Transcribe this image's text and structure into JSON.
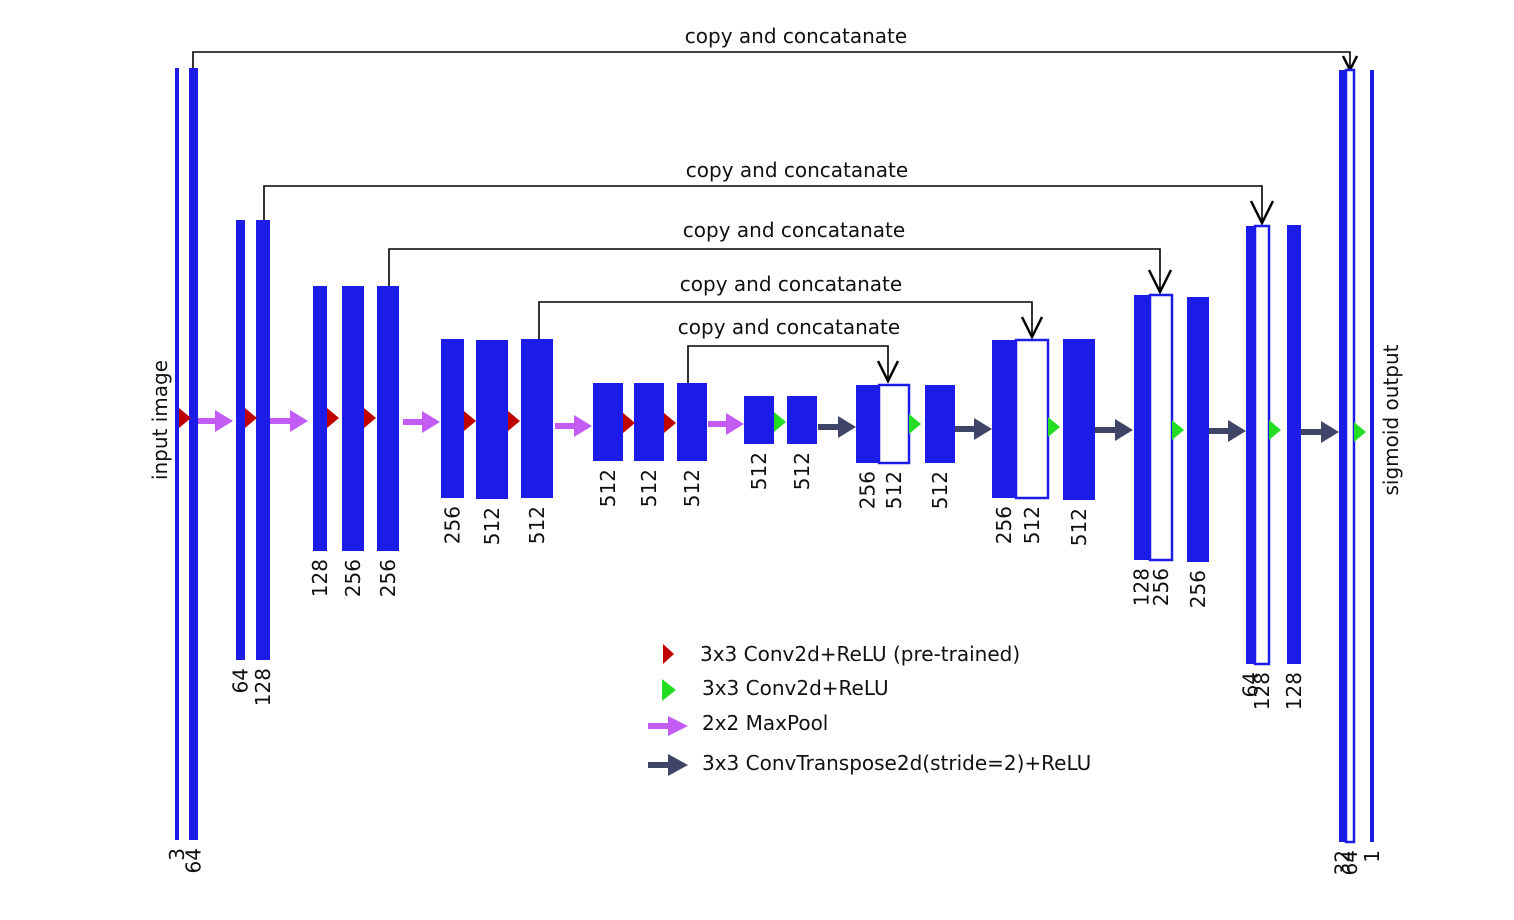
{
  "diagram": {
    "colors": {
      "block": "#1c1ce8",
      "block_outline": "#1c1ce8",
      "conv_pretrained": "#c00000",
      "conv": "#22dd22",
      "maxpool": "#c25cf5",
      "upconv": "#3f4566",
      "line": "#000000",
      "background": "#ffffff"
    },
    "side_labels": {
      "input": "input image",
      "output": "sigmoid output"
    },
    "skip_connections": [
      {
        "label": "copy and concatanate"
      },
      {
        "label": "copy and concatanate"
      },
      {
        "label": "copy and concatanate"
      },
      {
        "label": "copy and concatanate"
      },
      {
        "label": "copy and concatanate"
      }
    ],
    "channels": {
      "enc1": [
        "3",
        "64"
      ],
      "enc2": [
        "64",
        "128"
      ],
      "enc3": [
        "128",
        "256",
        "256"
      ],
      "enc4": [
        "256",
        "512",
        "512"
      ],
      "enc5": [
        "512",
        "512",
        "512"
      ],
      "bottleneck": [
        "512",
        "512"
      ],
      "dec5": [
        "256",
        "512",
        "512"
      ],
      "dec4": [
        "256",
        "512",
        "512"
      ],
      "dec3": [
        "128",
        "256",
        "256"
      ],
      "dec2": [
        "64",
        "128",
        "128"
      ],
      "dec1": [
        "32",
        "64",
        "1"
      ]
    },
    "legend": [
      {
        "icon": "red-triangle-icon",
        "text": "3x3 Conv2d+ReLU (pre-trained)"
      },
      {
        "icon": "green-triangle-icon",
        "text": "3x3 Conv2d+ReLU"
      },
      {
        "icon": "purple-arrow-icon",
        "text": "2x2 MaxPool"
      },
      {
        "icon": "dark-arrow-icon",
        "text": "3x3 ConvTranspose2d(stride=2)+ReLU"
      }
    ]
  }
}
